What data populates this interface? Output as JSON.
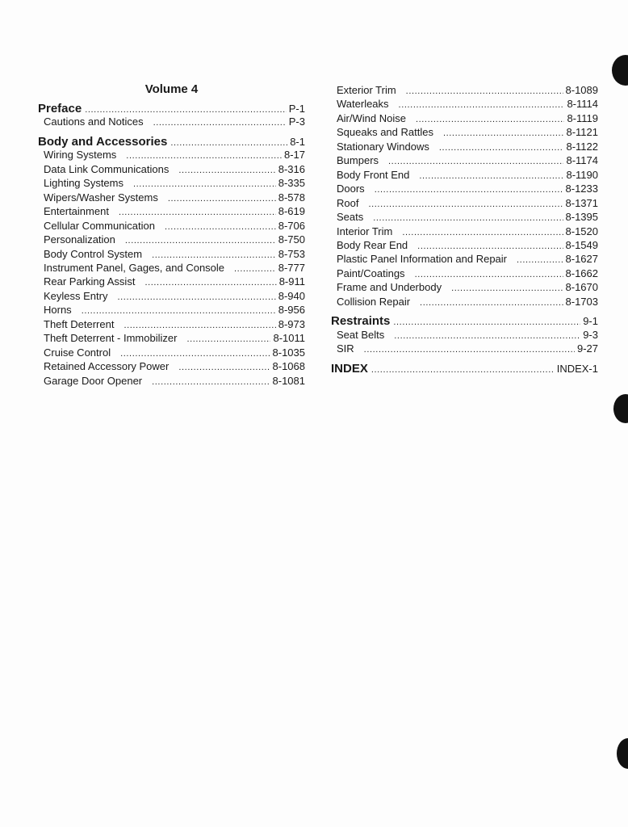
{
  "volume_title": "Volume 4",
  "left_column": [
    {
      "label": "Preface",
      "page": "P-1",
      "level": "head"
    },
    {
      "label": "Cautions and Notices",
      "page": "P-3",
      "level": "sub"
    },
    {
      "label": "Body and Accessories",
      "page": "8-1",
      "level": "head"
    },
    {
      "label": "Wiring Systems",
      "page": "8-17",
      "level": "sub"
    },
    {
      "label": "Data Link Communications",
      "page": "8-316",
      "level": "sub"
    },
    {
      "label": "Lighting Systems",
      "page": "8-335",
      "level": "sub"
    },
    {
      "label": "Wipers/Washer Systems",
      "page": "8-578",
      "level": "sub"
    },
    {
      "label": "Entertainment",
      "page": "8-619",
      "level": "sub"
    },
    {
      "label": "Cellular Communication",
      "page": "8-706",
      "level": "sub"
    },
    {
      "label": "Personalization",
      "page": "8-750",
      "level": "sub"
    },
    {
      "label": "Body Control System",
      "page": "8-753",
      "level": "sub"
    },
    {
      "label": "Instrument Panel, Gages, and Console",
      "page": "8-777",
      "level": "sub"
    },
    {
      "label": "Rear Parking Assist",
      "page": "8-911",
      "level": "sub"
    },
    {
      "label": "Keyless Entry",
      "page": "8-940",
      "level": "sub"
    },
    {
      "label": "Horns",
      "page": "8-956",
      "level": "sub"
    },
    {
      "label": "Theft Deterrent",
      "page": "8-973",
      "level": "sub"
    },
    {
      "label": "Theft Deterrent - Immobilizer",
      "page": "8-1011",
      "level": "sub"
    },
    {
      "label": "Cruise Control",
      "page": "8-1035",
      "level": "sub"
    },
    {
      "label": "Retained Accessory Power",
      "page": "8-1068",
      "level": "sub"
    },
    {
      "label": "Garage Door Opener",
      "page": "8-1081",
      "level": "sub"
    }
  ],
  "right_column": [
    {
      "label": "Exterior Trim",
      "page": "8-1089",
      "level": "sub"
    },
    {
      "label": "Waterleaks",
      "page": "8-1114",
      "level": "sub"
    },
    {
      "label": "Air/Wind Noise",
      "page": "8-1119",
      "level": "sub"
    },
    {
      "label": "Squeaks and Rattles",
      "page": "8-1121",
      "level": "sub"
    },
    {
      "label": "Stationary Windows",
      "page": "8-1122",
      "level": "sub"
    },
    {
      "label": "Bumpers",
      "page": "8-1174",
      "level": "sub"
    },
    {
      "label": "Body Front End",
      "page": "8-1190",
      "level": "sub"
    },
    {
      "label": "Doors",
      "page": "8-1233",
      "level": "sub"
    },
    {
      "label": "Roof",
      "page": "8-1371",
      "level": "sub"
    },
    {
      "label": "Seats",
      "page": "8-1395",
      "level": "sub"
    },
    {
      "label": "Interior Trim",
      "page": "8-1520",
      "level": "sub"
    },
    {
      "label": "Body Rear End",
      "page": "8-1549",
      "level": "sub"
    },
    {
      "label": "Plastic Panel Information and Repair",
      "page": "8-1627",
      "level": "sub"
    },
    {
      "label": "Paint/Coatings",
      "page": "8-1662",
      "level": "sub"
    },
    {
      "label": "Frame and Underbody",
      "page": "8-1670",
      "level": "sub"
    },
    {
      "label": "Collision Repair",
      "page": "8-1703",
      "level": "sub"
    },
    {
      "label": "Restraints",
      "page": "9-1",
      "level": "head"
    },
    {
      "label": "Seat Belts",
      "page": "9-3",
      "level": "sub"
    },
    {
      "label": "SIR",
      "page": "9-27",
      "level": "sub"
    },
    {
      "label": "INDEX",
      "page": "INDEX-1",
      "level": "head"
    }
  ]
}
